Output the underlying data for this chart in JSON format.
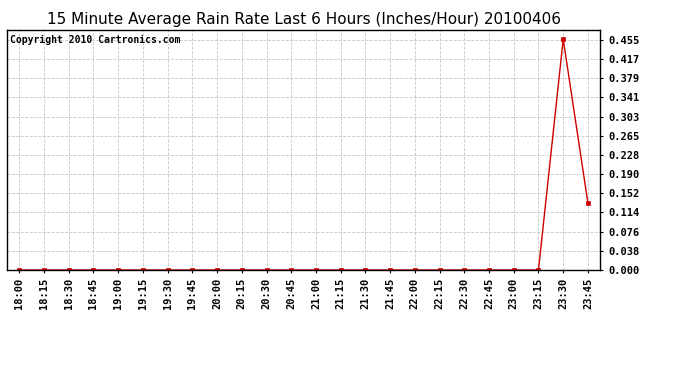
{
  "title": "15 Minute Average Rain Rate Last 6 Hours (Inches/Hour) 20100406",
  "copyright": "Copyright 2010 Cartronics.com",
  "line_color": "#cc0000",
  "marker_color": "#cc0000",
  "bg_color": "#ffffff",
  "grid_color": "#c8c8c8",
  "x_labels": [
    "18:00",
    "18:15",
    "18:30",
    "18:45",
    "19:00",
    "19:15",
    "19:30",
    "19:45",
    "20:00",
    "20:15",
    "20:30",
    "20:45",
    "21:00",
    "21:15",
    "21:30",
    "21:45",
    "22:00",
    "22:15",
    "22:30",
    "22:45",
    "23:00",
    "23:15",
    "23:30",
    "23:45"
  ],
  "y_values": [
    0.0,
    0.0,
    0.0,
    0.0,
    0.0,
    0.0,
    0.0,
    0.0,
    0.0,
    0.0,
    0.0,
    0.0,
    0.0,
    0.0,
    0.0,
    0.0,
    0.0,
    0.0,
    0.0,
    0.0,
    0.0,
    0.0,
    0.456,
    0.132
  ],
  "yticks": [
    0.0,
    0.038,
    0.076,
    0.114,
    0.152,
    0.19,
    0.228,
    0.265,
    0.303,
    0.341,
    0.379,
    0.417,
    0.455
  ],
  "ylim": [
    0.0,
    0.474
  ],
  "title_fontsize": 11,
  "axis_fontsize": 7.5,
  "copyright_fontsize": 7
}
